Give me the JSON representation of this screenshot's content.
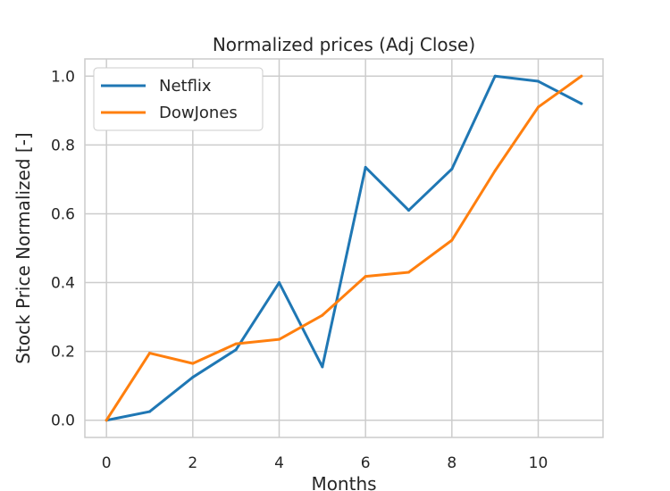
{
  "chart_data": {
    "type": "line",
    "title": "Normalized prices (Adj Close)",
    "xlabel": "Months",
    "ylabel": "Stock Price Normalized [-]",
    "xlim": [
      -0.5,
      11.5
    ],
    "ylim": [
      -0.05,
      1.05
    ],
    "x_ticks": [
      0,
      2,
      4,
      6,
      8,
      10
    ],
    "y_ticks": [
      0.0,
      0.2,
      0.4,
      0.6,
      0.8,
      1.0
    ],
    "x": [
      0,
      1,
      2,
      3,
      4,
      5,
      6,
      7,
      8,
      9,
      10,
      11
    ],
    "grid": true,
    "legend_position": "top-left",
    "series": [
      {
        "name": "Netflix",
        "color": "#1f77b4",
        "values": [
          0.0,
          0.025,
          0.125,
          0.205,
          0.4,
          0.155,
          0.735,
          0.61,
          0.73,
          1.0,
          0.985,
          0.92
        ]
      },
      {
        "name": "DowJones",
        "color": "#ff7f0e",
        "values": [
          0.0,
          0.195,
          0.165,
          0.222,
          0.235,
          0.305,
          0.418,
          0.43,
          0.523,
          0.725,
          0.91,
          1.0
        ]
      }
    ]
  }
}
